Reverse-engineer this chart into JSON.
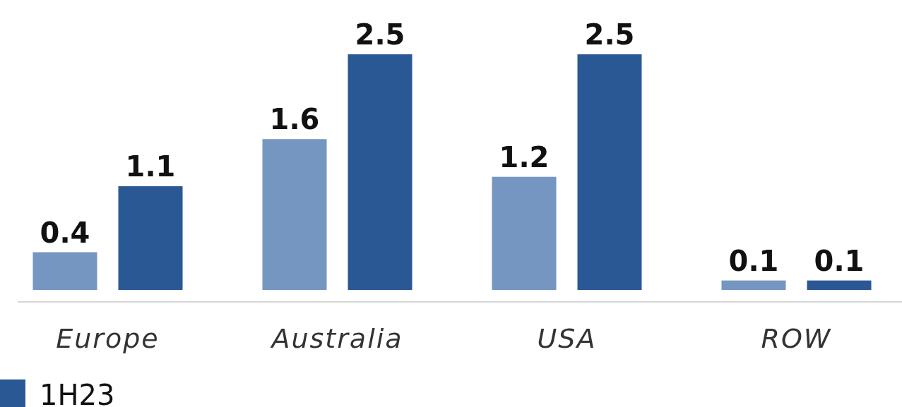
{
  "chart_data": {
    "type": "bar",
    "categories": [
      "Europe",
      "Australia",
      "USA",
      "ROW"
    ],
    "series": [
      {
        "color": "#7596c0",
        "values": [
          0.4,
          1.6,
          1.2,
          0.1
        ]
      },
      {
        "name": "1H23",
        "color": "#2a5894",
        "values": [
          1.1,
          2.5,
          2.5,
          0.1
        ]
      }
    ],
    "data_labels": true,
    "legend": "bottom left"
  }
}
